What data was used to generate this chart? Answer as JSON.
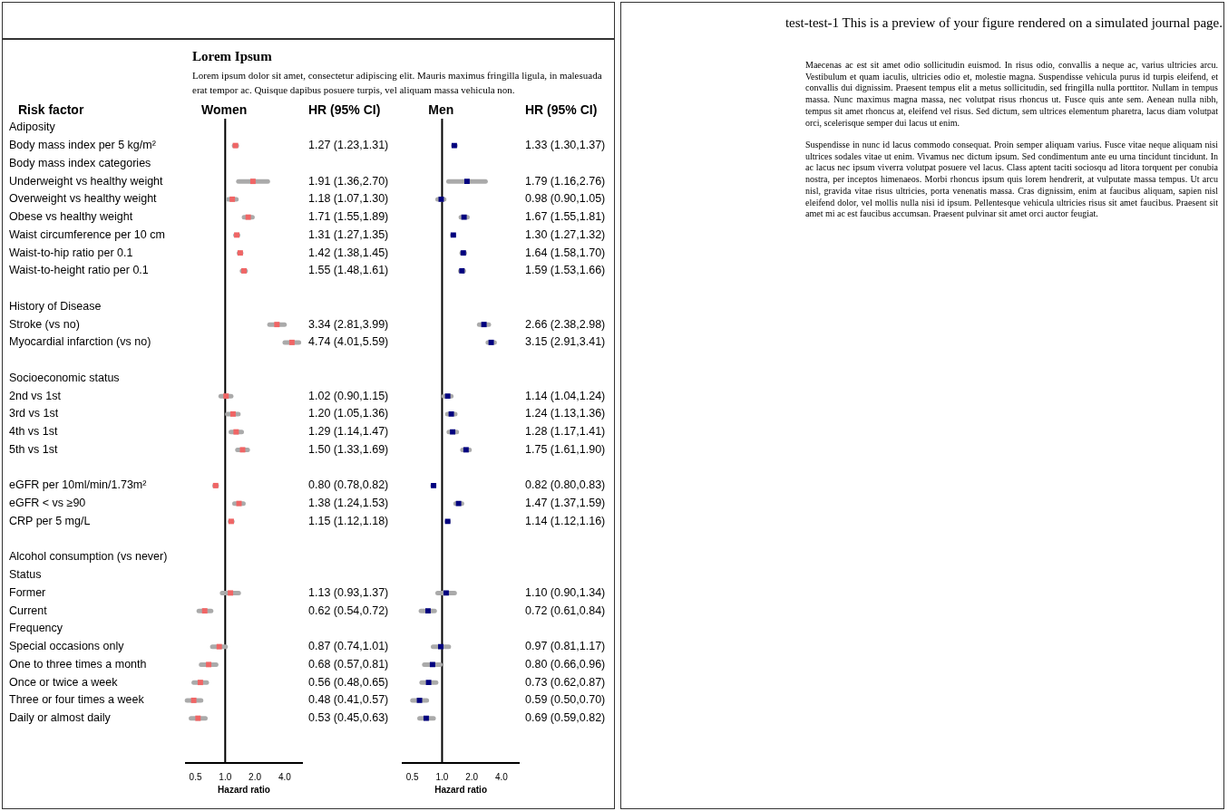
{
  "chart_data": [
    {
      "type": "scatter",
      "orientation": "horizontal",
      "title": "Women",
      "ylabel": "Risk factor",
      "xlabel": "Hazard ratio",
      "subtitle": "Lorem ipsum dolor sit amet, consectetur adipiscing elit. Mauris maximus fringilla ligula, in malesuada erat tempor ac. Quisque dapibus posuere turpis, vel aliquam massa vehicula non.",
      "categories": [
        "Adiposity",
        "Body mass index per 5 kg/m²",
        "Body mass index categories",
        "Underweight vs healthy weight",
        "Overweight vs healthy weight",
        "Obese vs healthy weight",
        "Waist circumference per 10 cm",
        "Waist-to-hip ratio per 0.1",
        "Waist-to-height ratio per 0.1",
        null,
        "History of Disease",
        "Stroke (vs no)",
        "Myocardial infarction (vs no)",
        null,
        "Socioeconomic status",
        "2nd vs 1st",
        "3rd vs 1st",
        "4th vs 1st",
        "5th vs 1st",
        null,
        "eGFR per 10ml/min/1.73m²",
        "eGFR < vs ≥90",
        "CRP per 5 mg/L",
        null,
        "Alcohol consumption (vs never)",
        "Status",
        "Former",
        "Current",
        "Frequency",
        "Special occasions only",
        "One to three times a month",
        "Once or twice a week",
        "Three or four times a week",
        "Daily or almost daily"
      ],
      "values": [
        null,
        1.27,
        null,
        1.91,
        1.18,
        1.71,
        1.31,
        1.42,
        1.55,
        null,
        null,
        3.34,
        4.74,
        null,
        null,
        1.02,
        1.2,
        1.29,
        1.5,
        null,
        0.8,
        1.38,
        1.15,
        null,
        null,
        null,
        1.13,
        0.62,
        null,
        0.87,
        0.68,
        0.56,
        0.48,
        0.53
      ],
      "errors": [
        null,
        [
          1.23,
          1.31
        ],
        null,
        [
          1.36,
          2.7
        ],
        [
          1.07,
          1.3
        ],
        [
          1.55,
          1.89
        ],
        [
          1.27,
          1.35
        ],
        [
          1.38,
          1.45
        ],
        [
          1.48,
          1.61
        ],
        null,
        null,
        [
          2.81,
          3.99
        ],
        [
          4.01,
          5.59
        ],
        null,
        null,
        [
          0.9,
          1.15
        ],
        [
          1.05,
          1.36
        ],
        [
          1.14,
          1.47
        ],
        [
          1.33,
          1.69
        ],
        null,
        [
          0.78,
          0.82
        ],
        [
          1.24,
          1.53
        ],
        [
          1.12,
          1.18
        ],
        null,
        null,
        null,
        [
          0.93,
          1.37
        ],
        [
          0.54,
          0.72
        ],
        null,
        [
          0.74,
          1.01
        ],
        [
          0.57,
          0.81
        ],
        [
          0.48,
          0.65
        ],
        [
          0.41,
          0.57
        ],
        [
          0.45,
          0.63
        ]
      ],
      "value_labels": [
        null,
        "1.27 (1.23,1.31)",
        null,
        "1.91 (1.36,2.70)",
        "1.18 (1.07,1.30)",
        "1.71 (1.55,1.89)",
        "1.31 (1.27,1.35)",
        "1.42 (1.38,1.45)",
        "1.55 (1.48,1.61)",
        null,
        null,
        "3.34 (2.81,3.99)",
        "4.74 (4.01,5.59)",
        null,
        null,
        "1.02 (0.90,1.15)",
        "1.20 (1.05,1.36)",
        "1.29 (1.14,1.47)",
        "1.50 (1.33,1.69)",
        null,
        "0.80 (0.78,0.82)",
        "1.38 (1.24,1.53)",
        "1.15 (1.12,1.18)",
        null,
        null,
        null,
        "1.13 (0.93,1.37)",
        "0.62 (0.54,0.72)",
        null,
        "0.87 (0.74,1.01)",
        "0.68 (0.57,0.81)",
        "0.56 (0.48,0.65)",
        "0.48 (0.41,0.57)",
        "0.53 (0.45,0.63)"
      ],
      "color": "#f06565",
      "marker": "square",
      "log": "x",
      "xlim": [
        0.4,
        6
      ],
      "xticks": [
        {
          "value": 0.5,
          "label": "0.5"
        },
        {
          "value": 1,
          "label": "1.0"
        },
        {
          "value": 2,
          "label": "2.0"
        },
        {
          "value": 4,
          "label": "4.0"
        }
      ],
      "ref_lines": [
        {
          "axis": "x",
          "value": 1,
          "color": "#000000"
        }
      ],
      "grid": false,
      "legend": false,
      "annotations": [
        "HR (95% CI)",
        "Lorem Ipsum",
        "test-test-1 This is a preview of your figure rendered on a simulated journal page.",
        "Maecenas ac est sit amet odio sollicitudin euismod. In risus odio, convallis a neque ac, varius ultricies arcu. Vestibulum et quam iaculis, ultricies odio et, molestie magna. Suspendisse vehicula purus id turpis eleifend, et convallis dui dignissim. Praesent tempus elit a metus sollicitudin, sed fringilla nulla porttitor. Nullam in tempus massa. Nunc maximus magna massa, nec volutpat risus rhoncus ut. Fusce quis ante sem. Aenean nulla nibh, tempus sit amet rhoncus at, eleifend vel risus. Sed dictum, sem ultrices elementum pharetra, lacus diam volutpat orci, scelerisque semper dui lacus ut enim.",
        "Suspendisse in nunc id lacus commodo consequat. Proin semper aliquam varius. Fusce vitae neque aliquam nisi ultrices sodales vitae ut enim. Vivamus nec dictum ipsum. Sed condimentum ante eu urna tincidunt tincidunt. In ac lacus nec ipsum viverra volutpat posuere vel lacus. Class aptent taciti sociosqu ad litora torquent per conubia nostra, per inceptos himenaeos. Morbi rhoncus ipsum quis lorem hendrerit, at vulputate massa tempus. Ut arcu nisl, gravida vitae risus ultricies, porta venenatis massa. Cras dignissim, enim at faucibus aliquam, sapien nisl eleifend dolor, vel mollis nulla nisi id ipsum. Pellentesque vehicula ultricies risus sit amet faucibus. Praesent sit amet mi ac est faucibus accumsan. Praesent pulvinar sit amet orci auctor feugiat."
      ]
    },
    {
      "type": "scatter",
      "orientation": "horizontal",
      "title": "Men",
      "xlabel": "Hazard ratio",
      "tick_labels": "x",
      "categories": [
        null,
        null,
        null,
        null,
        null,
        null,
        null,
        null,
        null,
        null,
        null,
        null,
        null,
        null,
        null,
        null,
        null,
        null,
        null,
        null,
        null,
        null,
        null,
        null,
        null,
        null,
        null,
        null,
        null,
        null,
        null,
        null,
        null,
        null
      ],
      "values": [
        null,
        1.33,
        null,
        1.79,
        0.98,
        1.67,
        1.3,
        1.64,
        1.59,
        null,
        null,
        2.66,
        3.15,
        null,
        null,
        1.14,
        1.24,
        1.28,
        1.75,
        null,
        0.82,
        1.47,
        1.14,
        null,
        null,
        null,
        1.1,
        0.72,
        null,
        0.97,
        0.8,
        0.73,
        0.59,
        0.69
      ],
      "errors": [
        null,
        [
          1.3,
          1.37
        ],
        null,
        [
          1.16,
          2.76
        ],
        [
          0.9,
          1.05
        ],
        [
          1.55,
          1.81
        ],
        [
          1.27,
          1.32
        ],
        [
          1.58,
          1.7
        ],
        [
          1.53,
          1.66
        ],
        null,
        null,
        [
          2.38,
          2.98
        ],
        [
          2.91,
          3.41
        ],
        null,
        null,
        [
          1.04,
          1.24
        ],
        [
          1.13,
          1.36
        ],
        [
          1.17,
          1.41
        ],
        [
          1.61,
          1.9
        ],
        null,
        [
          0.8,
          0.83
        ],
        [
          1.37,
          1.59
        ],
        [
          1.12,
          1.16
        ],
        null,
        null,
        null,
        [
          0.9,
          1.34
        ],
        [
          0.61,
          0.84
        ],
        null,
        [
          0.81,
          1.17
        ],
        [
          0.66,
          0.96
        ],
        [
          0.62,
          0.87
        ],
        [
          0.5,
          0.7
        ],
        [
          0.59,
          0.82
        ]
      ],
      "value_labels": [
        null,
        "1.33 (1.30,1.37)",
        null,
        "1.79 (1.16,2.76)",
        "0.98 (0.90,1.05)",
        "1.67 (1.55,1.81)",
        "1.30 (1.27,1.32)",
        "1.64 (1.58,1.70)",
        "1.59 (1.53,1.66)",
        null,
        null,
        "2.66 (2.38,2.98)",
        "3.15 (2.91,3.41)",
        null,
        null,
        "1.14 (1.04,1.24)",
        "1.24 (1.13,1.36)",
        "1.28 (1.17,1.41)",
        "1.75 (1.61,1.90)",
        null,
        "0.82 (0.80,0.83)",
        "1.47 (1.37,1.59)",
        "1.14 (1.12,1.16)",
        null,
        null,
        null,
        "1.10 (0.90,1.34)",
        "0.72 (0.61,0.84)",
        null,
        "0.97 (0.81,1.17)",
        "0.80 (0.66,0.96)",
        "0.73 (0.62,0.87)",
        "0.59 (0.50,0.70)",
        "0.69 (0.59,0.82)"
      ],
      "color": "#00007f",
      "marker": "square",
      "log": "x",
      "xlim": [
        0.4,
        6
      ],
      "xticks": [
        {
          "value": 0.5,
          "label": "0.5"
        },
        {
          "value": 1,
          "label": "1.0"
        },
        {
          "value": 2,
          "label": "2.0"
        },
        {
          "value": 4,
          "label": "4.0"
        }
      ],
      "ref_lines": [
        {
          "axis": "x",
          "value": 1,
          "color": "#000000"
        }
      ],
      "grid": false,
      "legend": false,
      "annotations": [
        "HR (95% CI)"
      ]
    }
  ]
}
